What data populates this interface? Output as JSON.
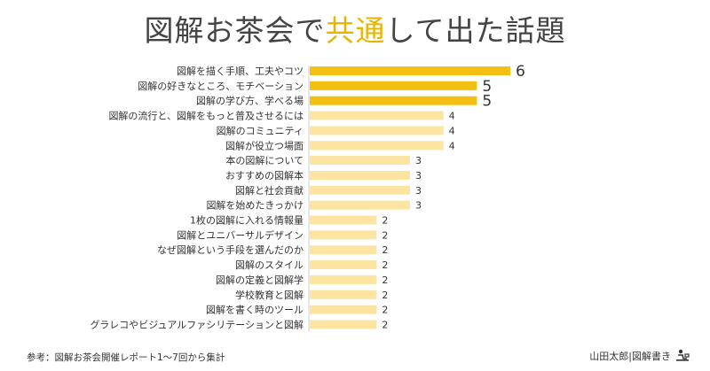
{
  "title": {
    "prefix": "図解お茶会で",
    "highlight": "共通",
    "suffix": "して出た話題"
  },
  "colors": {
    "highlight": "#f2bf12",
    "normal": "#fde4a0",
    "title_highlight": "#e8b400"
  },
  "chart_data": {
    "type": "bar",
    "orientation": "horizontal",
    "categories": [
      "図解を描く手順、工夫やコツ",
      "図解の好きなところ、モチベーション",
      "図解の学び方、学べる場",
      "図解の流行と、図解をもっと普及させるには",
      "図解のコミュニティ",
      "図解が役立つ場面",
      "本の図解について",
      "おすすめの図解本",
      "図解と社会貢献",
      "図解を始めたきっかけ",
      "1枚の図解に入れる情報量",
      "図解とユニバーサルデザイン",
      "なぜ図解という手段を選んだのか",
      "図解のスタイル",
      "図解の定義と図解学",
      "学校教育と図解",
      "図解を書く時のツール",
      "グラレコやビジュアルファシリテーションと図解"
    ],
    "values": [
      6,
      5,
      5,
      4,
      4,
      4,
      3,
      3,
      3,
      3,
      2,
      2,
      2,
      2,
      2,
      2,
      2,
      2
    ],
    "highlighted": [
      true,
      true,
      true,
      false,
      false,
      false,
      false,
      false,
      false,
      false,
      false,
      false,
      false,
      false,
      false,
      false,
      false,
      false
    ],
    "xlim": [
      0,
      6
    ]
  },
  "footer": {
    "source": "参考：図解お茶会開催レポート1〜7回から集計",
    "author": "山田太郎|図解書き",
    "author_icon": "person-at-desk-icon"
  }
}
